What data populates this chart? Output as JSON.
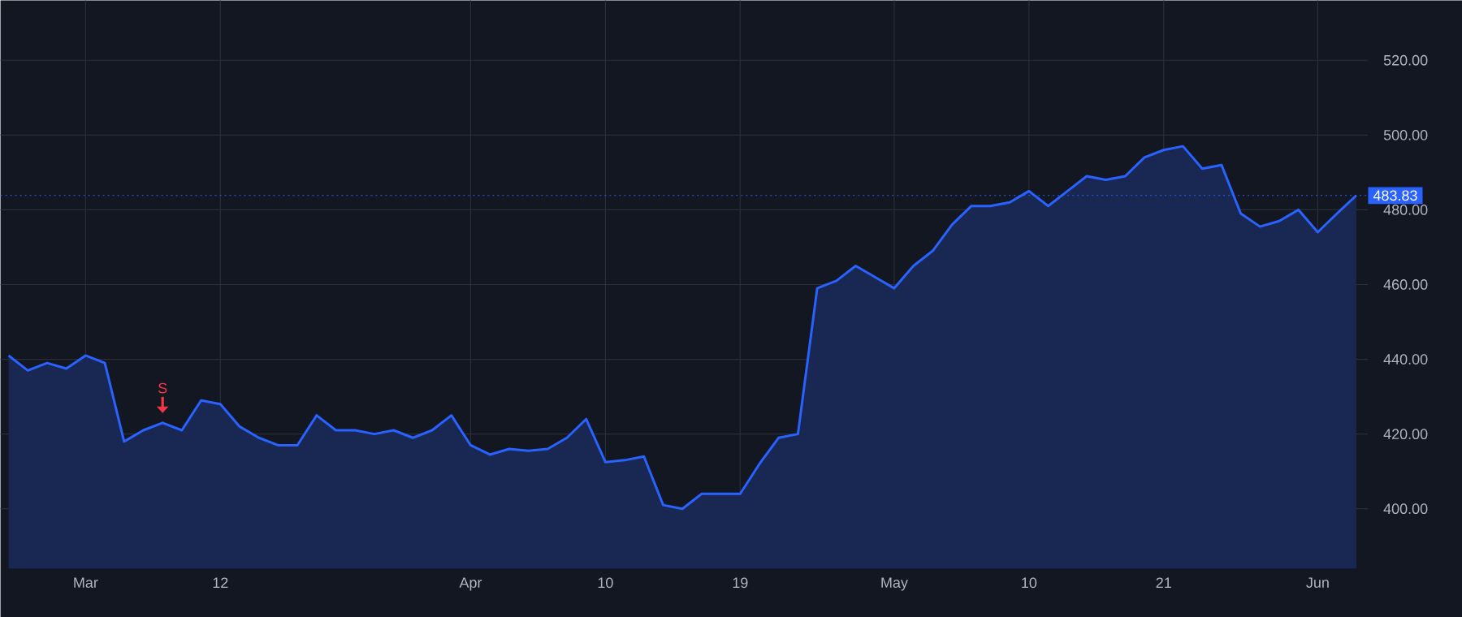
{
  "chart_data": {
    "type": "area",
    "color": "#2962ff",
    "marker": "none",
    "line_style": "solid",
    "grid": true,
    "categories": [
      null,
      null,
      null,
      null,
      "Mar",
      null,
      null,
      null,
      null,
      null,
      null,
      "12",
      null,
      null,
      null,
      null,
      null,
      null,
      null,
      null,
      null,
      null,
      null,
      null,
      "Apr",
      null,
      null,
      null,
      null,
      null,
      null,
      "10",
      null,
      null,
      null,
      null,
      null,
      null,
      "19",
      null,
      null,
      null,
      null,
      null,
      null,
      null,
      "May",
      null,
      null,
      null,
      null,
      null,
      null,
      "10",
      null,
      null,
      null,
      null,
      null,
      null,
      "21",
      null,
      null,
      null,
      null,
      null,
      null,
      null,
      "Jun",
      null,
      null
    ],
    "values": [
      441,
      437,
      439,
      437.5,
      441,
      439,
      418,
      421,
      423,
      421,
      429,
      428,
      422,
      419,
      417,
      417,
      425,
      421,
      421,
      420,
      421,
      419,
      421,
      425,
      417,
      414.5,
      416,
      415.5,
      416,
      419,
      424,
      412.5,
      413,
      414,
      401,
      400,
      404,
      404,
      404,
      412,
      419,
      420,
      459,
      461,
      465,
      462,
      459,
      465,
      469,
      476,
      481,
      481,
      482,
      485,
      481,
      485,
      489,
      488,
      489,
      494,
      496,
      497,
      491,
      492,
      479,
      475.5,
      477,
      480,
      474,
      479,
      483.83
    ],
    "ylim": [
      384,
      536
    ],
    "yticks": [
      {
        "value": 400,
        "label": "400.00"
      },
      {
        "value": 420,
        "label": "420.00"
      },
      {
        "value": 440,
        "label": "440.00"
      },
      {
        "value": 460,
        "label": "460.00"
      },
      {
        "value": 480,
        "label": "480.00"
      },
      {
        "value": 500,
        "label": "500.00"
      },
      {
        "value": 520,
        "label": "520.00"
      }
    ],
    "ref_lines": [
      {
        "axis": "y",
        "value": 483.83,
        "label": "483.83",
        "color": "#2962ff",
        "line_style": "dotted"
      }
    ],
    "annotations": [
      {
        "text": "S",
        "y": 423
      }
    ]
  }
}
